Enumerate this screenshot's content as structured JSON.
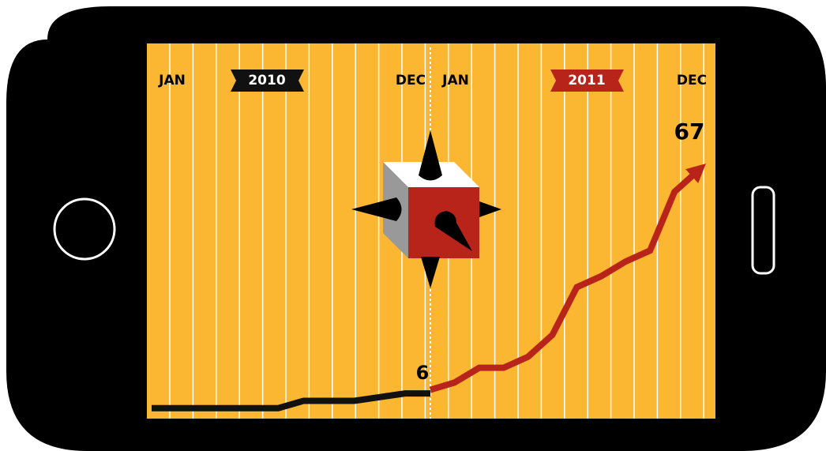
{
  "chart_data": {
    "type": "line",
    "periods": [
      {
        "start": "JAN",
        "year": "2010",
        "end": "DEC",
        "color": "#111111"
      },
      {
        "start": "JAN",
        "year": "2011",
        "end": "DEC",
        "color": "#b8241a"
      }
    ],
    "series": [
      {
        "color": "#111111",
        "values": [
          2,
          2,
          2,
          2,
          2,
          2,
          4,
          4,
          4,
          5,
          6,
          6
        ]
      },
      {
        "color": "#b8241a",
        "values": [
          7,
          9,
          13,
          13,
          16,
          22,
          35,
          38,
          42,
          45,
          61,
          67
        ]
      }
    ],
    "ylim": [
      0,
      100
    ],
    "yticks": [
      20,
      40,
      60,
      80,
      100
    ]
  }
}
